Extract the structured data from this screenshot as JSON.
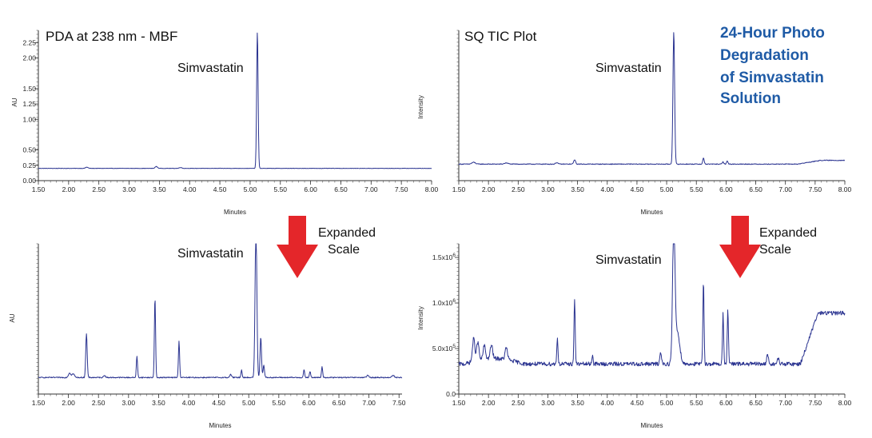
{
  "headline": [
    "24-Hour Photo",
    "Degradation",
    "of Simvastatin",
    "Solution"
  ],
  "headline_color": "#1f5ba6",
  "trace_color": "#2a3390",
  "arrow_color": "#e4262a",
  "arrow_notes": [
    {
      "lines": [
        "Expanded",
        "Scale"
      ]
    },
    {
      "lines": [
        "Expanded",
        "Scale"
      ]
    }
  ],
  "chart_data": [
    {
      "type": "line",
      "title": "PDA at 238 nm - MBF",
      "annotation": "Simvastatin",
      "xlabel": "Minutes",
      "ylabel": "AU",
      "xlim": [
        1.5,
        8.0
      ],
      "ylim": [
        0.0,
        2.45
      ],
      "xticks": [
        "1.50",
        "2.00",
        "2.50",
        "3.00",
        "3.50",
        "4.00",
        "4.50",
        "5.00",
        "5.50",
        "6.00",
        "6.50",
        "7.00",
        "7.50",
        "8.00"
      ],
      "yticks": [
        {
          "v": 0.0,
          "label": "0.00"
        },
        {
          "v": 0.25,
          "label": "0.25"
        },
        {
          "v": 0.5,
          "label": "0.50"
        },
        {
          "v": 1.0,
          "label": "1.00"
        },
        {
          "v": 1.25,
          "label": "1.25"
        },
        {
          "v": 1.5,
          "label": "1.50"
        },
        {
          "v": 2.0,
          "label": "2.00"
        },
        {
          "v": 2.25,
          "label": "2.25"
        }
      ],
      "baseline": 0.2,
      "noise": 0.003,
      "drift": [],
      "peaks": [
        {
          "x": 2.3,
          "h": 0.02,
          "w": 0.02
        },
        {
          "x": 3.45,
          "h": 0.03,
          "w": 0.02
        },
        {
          "x": 3.85,
          "h": 0.015,
          "w": 0.02
        },
        {
          "x": 5.12,
          "h": 2.23,
          "w": 0.012
        }
      ]
    },
    {
      "type": "line",
      "title": "SQ TIC Plot",
      "annotation": "Simvastatin",
      "xlabel": "Minutes",
      "ylabel": "Intensity",
      "xlim": [
        1.5,
        8.0
      ],
      "ylim": [
        0,
        100
      ],
      "xticks": [
        "1.50",
        "2.00",
        "2.50",
        "3.00",
        "3.50",
        "4.00",
        "4.50",
        "5.00",
        "5.50",
        "6.00",
        "6.50",
        "7.00",
        "7.50",
        "8.00"
      ],
      "yticks": [],
      "baseline": 11,
      "noise": 0.25,
      "drift": [
        {
          "x0": 7.2,
          "x1": 7.6,
          "d": 2.5
        }
      ],
      "peaks": [
        {
          "x": 1.75,
          "h": 1.2,
          "w": 0.03
        },
        {
          "x": 2.3,
          "h": 0.8,
          "w": 0.03
        },
        {
          "x": 3.15,
          "h": 1.0,
          "w": 0.02
        },
        {
          "x": 3.45,
          "h": 3.0,
          "w": 0.015
        },
        {
          "x": 5.12,
          "h": 88,
          "w": 0.014
        },
        {
          "x": 5.62,
          "h": 4.0,
          "w": 0.012
        },
        {
          "x": 5.95,
          "h": 1.5,
          "w": 0.012
        },
        {
          "x": 6.02,
          "h": 2.0,
          "w": 0.012
        }
      ]
    },
    {
      "type": "line",
      "title": "",
      "annotation": "Simvastatin",
      "xlabel": "Minutes",
      "ylabel": "AU",
      "xlim": [
        1.5,
        7.55
      ],
      "ylim": [
        0,
        100
      ],
      "xticks": [
        "1.50",
        "2.00",
        "2.50",
        "3.00",
        "3.50",
        "4.00",
        "4.50",
        "5.00",
        "5.50",
        "6.00",
        "6.50",
        "7.00",
        "7.50"
      ],
      "yticks": [],
      "baseline": 11,
      "noise": 0.35,
      "drift": [],
      "peaks": [
        {
          "x": 2.02,
          "h": 3,
          "w": 0.02
        },
        {
          "x": 2.08,
          "h": 2.5,
          "w": 0.02
        },
        {
          "x": 2.3,
          "h": 29,
          "w": 0.012
        },
        {
          "x": 2.6,
          "h": 1.5,
          "w": 0.015
        },
        {
          "x": 3.14,
          "h": 14,
          "w": 0.01
        },
        {
          "x": 3.44,
          "h": 53,
          "w": 0.01
        },
        {
          "x": 3.84,
          "h": 24,
          "w": 0.01
        },
        {
          "x": 4.7,
          "h": 2,
          "w": 0.015
        },
        {
          "x": 4.88,
          "h": 5,
          "w": 0.01
        },
        {
          "x": 5.12,
          "h": 100,
          "w": 0.015
        },
        {
          "x": 5.2,
          "h": 27,
          "w": 0.012
        },
        {
          "x": 5.25,
          "h": 8,
          "w": 0.012
        },
        {
          "x": 5.92,
          "h": 5,
          "w": 0.01
        },
        {
          "x": 6.02,
          "h": 4,
          "w": 0.01
        },
        {
          "x": 6.22,
          "h": 7,
          "w": 0.01
        },
        {
          "x": 6.98,
          "h": 1.5,
          "w": 0.015
        },
        {
          "x": 7.4,
          "h": 1.5,
          "w": 0.02
        }
      ]
    },
    {
      "type": "line",
      "title": "",
      "annotation": "Simvastatin",
      "xlabel": "Minutes",
      "ylabel": "Intensity",
      "xlim": [
        1.5,
        8.0
      ],
      "ylim": [
        0,
        1650000
      ],
      "xticks": [
        "1.50",
        "2.00",
        "2.50",
        "3.00",
        "3.50",
        "4.00",
        "4.50",
        "5.00",
        "5.50",
        "6.00",
        "6.50",
        "7.00",
        "7.50",
        "8.00"
      ],
      "yticks": [
        {
          "v": 0,
          "label": "0.0"
        },
        {
          "v": 500000,
          "label": "5.0x10",
          "sup": "5"
        },
        {
          "v": 1000000,
          "label": "1.0x10",
          "sup": "6"
        },
        {
          "v": 1500000,
          "label": "1.5x10",
          "sup": "6"
        }
      ],
      "baseline": 330000,
      "noise": 22000,
      "drift": [
        {
          "x0": 1.6,
          "x1": 2.6,
          "d": 60000,
          "bump": true
        },
        {
          "x0": 7.25,
          "x1": 7.55,
          "d": 560000
        }
      ],
      "peaks": [
        {
          "x": 1.75,
          "h": 250000,
          "w": 0.02
        },
        {
          "x": 1.82,
          "h": 200000,
          "w": 0.02
        },
        {
          "x": 1.93,
          "h": 150000,
          "w": 0.02
        },
        {
          "x": 2.05,
          "h": 150000,
          "w": 0.02
        },
        {
          "x": 2.3,
          "h": 130000,
          "w": 0.02
        },
        {
          "x": 3.16,
          "h": 290000,
          "w": 0.01
        },
        {
          "x": 3.45,
          "h": 720000,
          "w": 0.01
        },
        {
          "x": 3.75,
          "h": 100000,
          "w": 0.01
        },
        {
          "x": 4.9,
          "h": 120000,
          "w": 0.015
        },
        {
          "x": 5.12,
          "h": 1500000,
          "w": 0.02
        },
        {
          "x": 5.18,
          "h": 350000,
          "w": 0.04
        },
        {
          "x": 5.62,
          "h": 900000,
          "w": 0.01
        },
        {
          "x": 5.95,
          "h": 550000,
          "w": 0.01
        },
        {
          "x": 6.03,
          "h": 600000,
          "w": 0.01
        },
        {
          "x": 6.7,
          "h": 100000,
          "w": 0.015
        },
        {
          "x": 6.88,
          "h": 60000,
          "w": 0.015
        }
      ]
    }
  ]
}
